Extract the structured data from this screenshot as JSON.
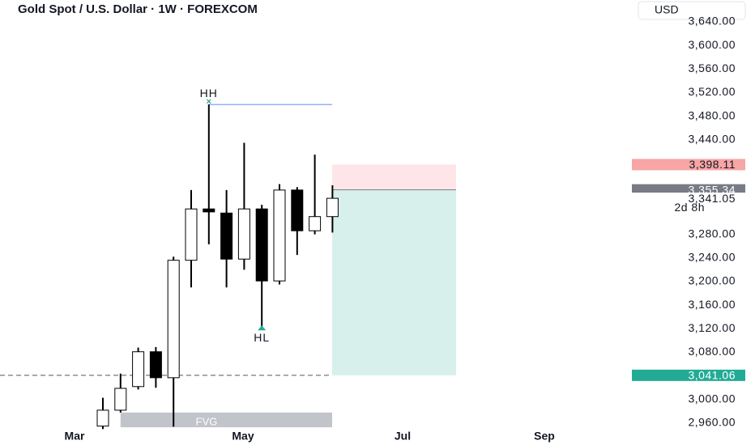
{
  "chart_data": {
    "type": "candlestick",
    "title": "Gold Spot / U.S. Dollar · 1W · FOREXCOM",
    "currency": "USD",
    "x_labels": [
      "Mar",
      "May",
      "Jul",
      "Sep"
    ],
    "open": [
      2955,
      2982,
      3022,
      3081,
      3037,
      3236,
      3323,
      3316,
      3238,
      3323,
      3201,
      3355,
      3286,
      3310
    ],
    "high": [
      3003,
      3044,
      3088,
      3089,
      3242,
      3355,
      3500,
      3355,
      3435,
      3330,
      3365,
      3360,
      3415,
      3363
    ],
    "low": [
      2950,
      2978,
      3017,
      3020,
      2954,
      3190,
      3263,
      3190,
      3220,
      3120,
      3195,
      3245,
      3280,
      3283
    ],
    "close": [
      2982,
      3019,
      3081,
      3037,
      3236,
      3323,
      3318,
      3238,
      3323,
      3201,
      3355,
      3286,
      3310,
      3341
    ],
    "up_color": "#ffffff",
    "down_color": "#000000",
    "ylim": [
      2960,
      3640
    ],
    "yticks": [
      {
        "value": 2960,
        "label": "2,960.00"
      },
      {
        "value": 3000,
        "label": "3,000.00"
      },
      {
        "value": 3080,
        "label": "3,080.00"
      },
      {
        "value": 3120,
        "label": "3,120.00"
      },
      {
        "value": 3160,
        "label": "3,160.00"
      },
      {
        "value": 3200,
        "label": "3,200.00"
      },
      {
        "value": 3240,
        "label": "3,240.00"
      },
      {
        "value": 3280,
        "label": "3,280.00"
      },
      {
        "value": 3440,
        "label": "3,440.00"
      },
      {
        "value": 3480,
        "label": "3,480.00"
      },
      {
        "value": 3520,
        "label": "3,520.00"
      },
      {
        "value": 3560,
        "label": "3,560.00"
      },
      {
        "value": 3600,
        "label": "3,600.00"
      },
      {
        "value": 3640,
        "label": "3,640.00"
      }
    ],
    "higher_high": {
      "label": "HH",
      "value": 3500
    },
    "higher_low": {
      "label": "HL",
      "value": 3120
    },
    "fvg": {
      "label": "FVG",
      "low": 2953,
      "high": 2978
    },
    "position": {
      "stop": 3398.11,
      "entry": 3355.34,
      "target": 3041.06
    },
    "price_tags": [
      {
        "value": 3398.11,
        "label": "3,398.11",
        "color": "#f7a5a5"
      },
      {
        "value": 3355.34,
        "label": "3,355.34",
        "color": "#787b86"
      },
      {
        "value": 3341.05,
        "label": "3,341.05",
        "color": "#ffffff"
      },
      {
        "value": 3041.06,
        "label": "3,041.06",
        "color": "#22ab94"
      }
    ],
    "countdown": "2d 8h"
  }
}
